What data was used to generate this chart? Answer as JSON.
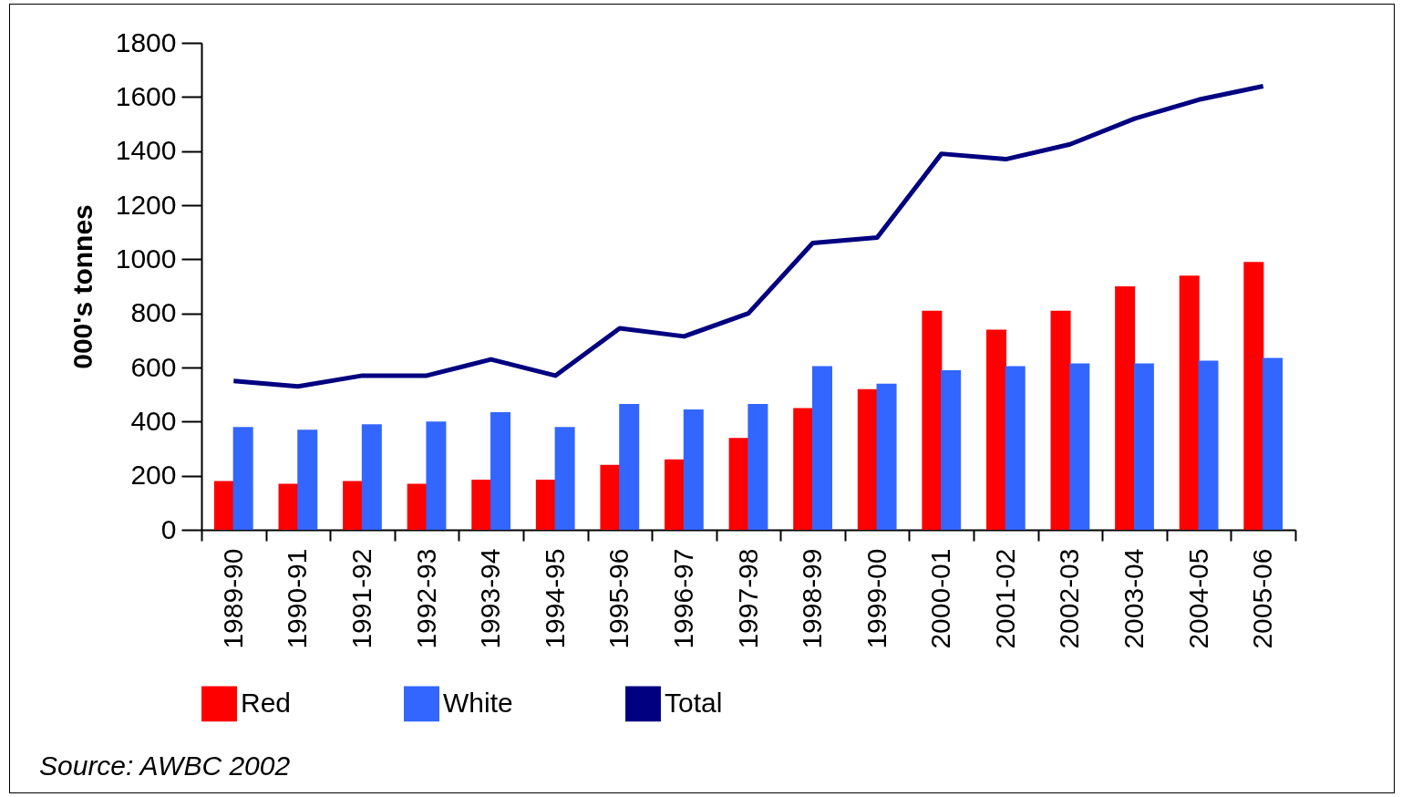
{
  "chart_data": {
    "type": "bar",
    "ylabel": "000's tonnes",
    "categories": [
      "1989-90",
      "1990-91",
      "1991-92",
      "1992-93",
      "1993-94",
      "1994-95",
      "1995-96",
      "1996-97",
      "1997-98",
      "1998-99",
      "1999-00",
      "2000-01",
      "2001-02",
      "2002-03",
      "2003-04",
      "2004-05",
      "2005-06"
    ],
    "series": [
      {
        "name": "Red",
        "color": "#ff0000",
        "values": [
          180,
          170,
          180,
          170,
          185,
          185,
          240,
          260,
          340,
          450,
          520,
          810,
          740,
          810,
          900,
          940,
          990
        ]
      },
      {
        "name": "White",
        "color": "#3366ff",
        "values": [
          380,
          370,
          390,
          400,
          435,
          380,
          465,
          445,
          465,
          605,
          540,
          590,
          605,
          615,
          615,
          625,
          635
        ]
      },
      {
        "name": "Total",
        "type": "line",
        "color": "#000080",
        "values": [
          550,
          530,
          570,
          570,
          630,
          570,
          745,
          715,
          800,
          1060,
          1080,
          1390,
          1370,
          1425,
          1520,
          1590,
          1640
        ]
      }
    ],
    "ylim": [
      0,
      1800
    ],
    "yticks": [
      0,
      200,
      400,
      600,
      800,
      1000,
      1200,
      1400,
      1600,
      1800
    ],
    "grid": false,
    "legend": "bottom",
    "marker": "none",
    "annotations": [
      "Source: AWBC 2002"
    ]
  }
}
